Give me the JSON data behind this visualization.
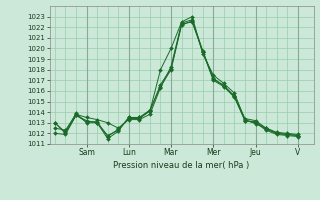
{
  "bg_color": "#cce8d8",
  "grid_color": "#99ccaa",
  "line_color": "#1a6b2a",
  "xlabel": "Pression niveau de la mer( hPa )",
  "ylim": [
    1011,
    1024
  ],
  "yticks": [
    1011,
    1012,
    1013,
    1014,
    1015,
    1016,
    1017,
    1018,
    1019,
    1020,
    1021,
    1022,
    1023
  ],
  "day_labels": [
    "Sam",
    "Lun",
    "Mar",
    "Mer",
    "Jeu",
    "V"
  ],
  "day_positions": [
    3,
    7,
    11,
    15,
    19,
    23
  ],
  "xlim": [
    -0.5,
    24.5
  ],
  "series": [
    [
      1012.0,
      1011.9,
      1013.7,
      1013.2,
      1013.0,
      1011.5,
      1012.2,
      1013.5,
      1013.5,
      1014.1,
      1018.0,
      1020.0,
      1022.5,
      1023.0,
      1019.5,
      1017.5,
      1016.7,
      1015.8,
      1013.3,
      1012.9,
      1012.5,
      1012.0,
      1011.9,
      1011.8
    ],
    [
      1012.5,
      1012.3,
      1013.8,
      1013.5,
      1013.3,
      1013.0,
      1012.5,
      1013.3,
      1013.3,
      1013.8,
      1016.3,
      1018.3,
      1022.4,
      1022.7,
      1019.8,
      1017.2,
      1016.5,
      1015.5,
      1013.2,
      1013.1,
      1012.4,
      1012.0,
      1011.9,
      1011.8
    ],
    [
      1013.0,
      1012.0,
      1013.7,
      1013.1,
      1013.1,
      1011.7,
      1012.4,
      1013.4,
      1013.4,
      1014.1,
      1016.6,
      1018.1,
      1022.3,
      1022.5,
      1019.7,
      1017.0,
      1016.4,
      1015.4,
      1013.2,
      1013.0,
      1012.3,
      1011.9,
      1011.8,
      1011.7
    ],
    [
      1013.0,
      1012.1,
      1013.9,
      1013.0,
      1013.0,
      1011.8,
      1012.3,
      1013.5,
      1013.5,
      1014.2,
      1016.4,
      1018.0,
      1022.2,
      1022.6,
      1019.7,
      1017.1,
      1016.5,
      1015.5,
      1013.4,
      1013.2,
      1012.5,
      1012.1,
      1012.0,
      1011.9
    ]
  ]
}
